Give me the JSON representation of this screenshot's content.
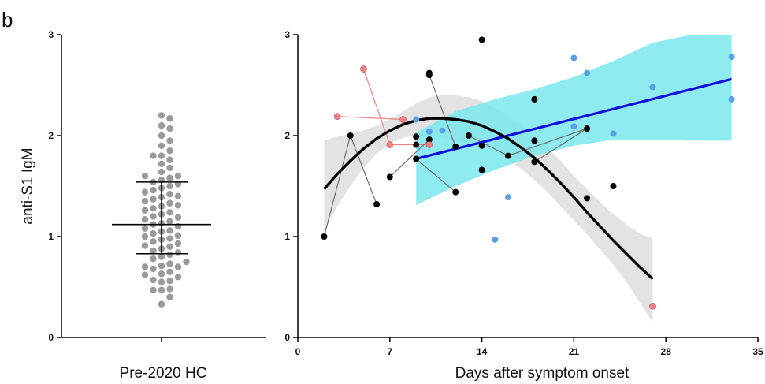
{
  "panel_label": "b",
  "colors": {
    "hc_dot": "#9a9a9a",
    "black_group": "#000000",
    "red_group": "#f28080",
    "blue_group": "#5aa0e6",
    "fit_black": "#000000",
    "fit_blue": "#1010dd",
    "band_black": "#dedede",
    "band_blue": "#7ae8ec",
    "axis": "#000000"
  },
  "chart_data": [
    {
      "type": "scatter",
      "subtype": "dot-plot",
      "ylabel": "anti-S1 IgM",
      "xlabel": "Pre-2020 HC",
      "ylim": [
        0,
        3
      ],
      "yticks": [
        0,
        1,
        2,
        3
      ],
      "summary": {
        "mean": 1.12,
        "sd_low": 0.83,
        "sd_high": 1.54
      },
      "values": [
        0.33,
        0.4,
        0.47,
        0.47,
        0.48,
        0.55,
        0.56,
        0.57,
        0.6,
        0.62,
        0.63,
        0.65,
        0.68,
        0.7,
        0.7,
        0.71,
        0.73,
        0.75,
        0.78,
        0.8,
        0.82,
        0.84,
        0.86,
        0.88,
        0.9,
        0.91,
        0.93,
        0.95,
        0.97,
        0.98,
        1.0,
        1.01,
        1.03,
        1.05,
        1.06,
        1.08,
        1.1,
        1.12,
        1.13,
        1.15,
        1.17,
        1.19,
        1.2,
        1.22,
        1.24,
        1.26,
        1.28,
        1.3,
        1.31,
        1.33,
        1.35,
        1.37,
        1.39,
        1.4,
        1.42,
        1.44,
        1.46,
        1.48,
        1.5,
        1.52,
        1.54,
        1.56,
        1.58,
        1.6,
        1.6,
        1.64,
        1.68,
        1.72,
        1.76,
        1.8,
        1.8,
        1.85,
        1.9,
        1.95,
        2.0,
        2.07,
        2.1,
        2.17,
        2.2
      ]
    },
    {
      "type": "scatter",
      "xlabel": "Days after symptom onset",
      "xlim": [
        0,
        35
      ],
      "ylim": [
        0,
        3
      ],
      "xticks": [
        0,
        7,
        14,
        21,
        28,
        35
      ],
      "yticks": [
        0,
        1,
        2,
        3
      ],
      "black_points": [
        [
          2,
          1.0
        ],
        [
          4,
          2.0
        ],
        [
          6,
          1.32
        ],
        [
          7,
          1.59
        ],
        [
          9,
          1.77
        ],
        [
          9,
          1.91
        ],
        [
          9,
          1.99
        ],
        [
          10,
          2.62
        ],
        [
          10,
          2.6
        ],
        [
          10,
          1.96
        ],
        [
          12,
          1.89
        ],
        [
          12,
          1.44
        ],
        [
          13,
          2.0
        ],
        [
          14,
          1.66
        ],
        [
          14,
          1.9
        ],
        [
          14,
          2.95
        ],
        [
          16,
          1.8
        ],
        [
          18,
          1.74
        ],
        [
          18,
          1.95
        ],
        [
          18,
          2.36
        ],
        [
          22,
          1.38
        ],
        [
          22,
          2.07
        ],
        [
          24,
          1.5
        ]
      ],
      "red_points": [
        [
          3,
          2.19
        ],
        [
          5,
          2.66
        ],
        [
          7,
          1.91
        ],
        [
          8,
          2.16
        ],
        [
          10,
          1.91
        ],
        [
          27,
          0.31
        ]
      ],
      "blue_points": [
        [
          9,
          2.16
        ],
        [
          10,
          2.04
        ],
        [
          11,
          2.05
        ],
        [
          15,
          0.97
        ],
        [
          16,
          1.39
        ],
        [
          21,
          2.09
        ],
        [
          21,
          2.77
        ],
        [
          22,
          2.62
        ],
        [
          24,
          2.02
        ],
        [
          27,
          2.48
        ],
        [
          33,
          2.78
        ],
        [
          33,
          2.36
        ]
      ],
      "connections": [
        {
          "group": "red",
          "points": [
            [
              3,
              2.19
            ],
            [
              8,
              2.16
            ]
          ]
        },
        {
          "group": "red",
          "points": [
            [
              5,
              2.66
            ],
            [
              7,
              1.91
            ]
          ]
        },
        {
          "group": "red",
          "points": [
            [
              7,
              1.91
            ],
            [
              10,
              1.91
            ]
          ]
        },
        {
          "group": "black",
          "points": [
            [
              2,
              1.0
            ],
            [
              4,
              2.0
            ]
          ]
        },
        {
          "group": "black",
          "points": [
            [
              4,
              2.0
            ],
            [
              6,
              1.32
            ]
          ]
        },
        {
          "group": "black",
          "points": [
            [
              10,
              2.6
            ],
            [
              12,
              1.89
            ]
          ]
        },
        {
          "group": "black",
          "points": [
            [
              9,
              1.77
            ],
            [
              12,
              1.44
            ]
          ]
        },
        {
          "group": "black",
          "points": [
            [
              7,
              1.59
            ],
            [
              10,
              1.96
            ]
          ]
        },
        {
          "group": "black",
          "points": [
            [
              13,
              2.0
            ],
            [
              16,
              1.8
            ]
          ]
        },
        {
          "group": "black",
          "points": [
            [
              16,
              1.8
            ],
            [
              22,
              2.07
            ]
          ]
        },
        {
          "group": "black",
          "points": [
            [
              18,
              1.74
            ],
            [
              22,
              2.07
            ]
          ]
        }
      ],
      "fits": [
        {
          "name": "quadratic",
          "color_key": "fit_black",
          "x": [
            2,
            3,
            4,
            5,
            6,
            7,
            8,
            9,
            10,
            11,
            12,
            13,
            14,
            15,
            16,
            17,
            18,
            19,
            20,
            21,
            22,
            23,
            24,
            25,
            26,
            27
          ],
          "y": [
            1.47,
            1.62,
            1.75,
            1.87,
            1.97,
            2.05,
            2.11,
            2.15,
            2.17,
            2.17,
            2.16,
            2.14,
            2.1,
            2.04,
            1.97,
            1.88,
            1.78,
            1.66,
            1.53,
            1.39,
            1.24,
            1.1,
            0.96,
            0.83,
            0.7,
            0.58
          ],
          "band_upper": [
            1.95,
            1.99,
            2.02,
            2.05,
            2.1,
            2.16,
            2.24,
            2.32,
            2.38,
            2.4,
            2.4,
            2.38,
            2.34,
            2.27,
            2.2,
            2.1,
            2.0,
            1.88,
            1.75,
            1.6,
            1.47,
            1.34,
            1.22,
            1.12,
            1.03,
            0.98
          ],
          "band_lower": [
            1.05,
            1.3,
            1.5,
            1.68,
            1.82,
            1.92,
            1.98,
            2.0,
            2.0,
            1.98,
            1.95,
            1.92,
            1.88,
            1.84,
            1.76,
            1.67,
            1.56,
            1.44,
            1.3,
            1.16,
            1.02,
            0.87,
            0.72,
            0.55,
            0.35,
            0.15
          ]
        },
        {
          "name": "linear",
          "color_key": "fit_blue",
          "x": [
            9,
            33
          ],
          "y": [
            1.77,
            2.56
          ],
          "band_x": [
            9,
            12,
            15,
            18,
            21,
            24,
            27,
            30,
            31,
            33
          ],
          "band_upper": [
            2.03,
            2.24,
            2.36,
            2.46,
            2.58,
            2.74,
            2.92,
            3.0,
            3.0,
            3.0
          ],
          "band_lower": [
            1.31,
            1.5,
            1.66,
            1.8,
            1.9,
            1.96,
            1.96,
            1.95,
            1.95,
            1.95
          ]
        }
      ]
    }
  ]
}
